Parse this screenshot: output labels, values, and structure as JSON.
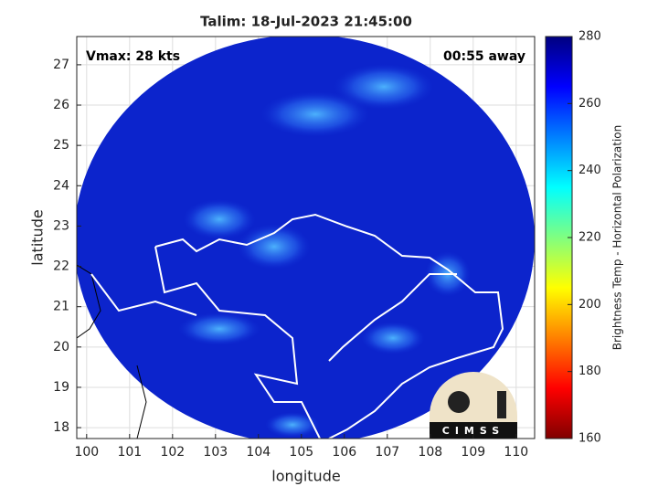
{
  "map": {
    "title": "Talim: 18-Jul-2023 21:45:00",
    "annotation_left": "Vmax: 28 kts",
    "annotation_right": "00:55 away",
    "xlabel": "longitude",
    "ylabel": "latitude",
    "xlim": [
      99.77,
      110.43
    ],
    "ylim": [
      17.73,
      27.7
    ],
    "xticks": [
      100,
      101,
      102,
      103,
      104,
      105,
      106,
      107,
      108,
      109,
      110
    ],
    "yticks": [
      18,
      19,
      20,
      21,
      22,
      23,
      24,
      25,
      26,
      27
    ],
    "grid": true,
    "colorbar": {
      "label": "Brightness Temp - Horizontal Polarization",
      "clim": [
        160,
        280
      ],
      "ticks": [
        160,
        180,
        200,
        220,
        240,
        260,
        280
      ],
      "colormap": [
        "#800000",
        "#ff0000",
        "#ff8000",
        "#ffff00",
        "#80ff80",
        "#00ffff",
        "#0080ff",
        "#0000ff",
        "#000080"
      ]
    },
    "logo": "CIMSS"
  }
}
